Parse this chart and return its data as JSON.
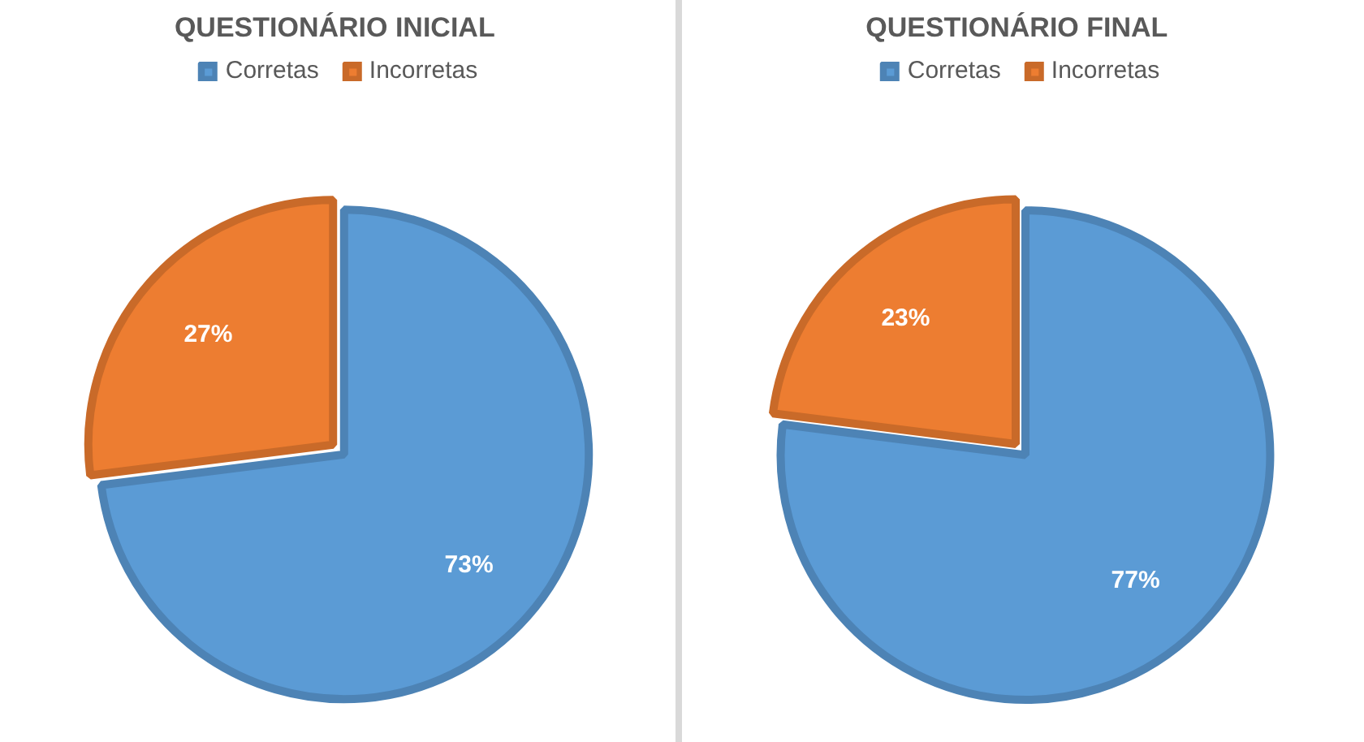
{
  "chart_data": [
    {
      "type": "pie",
      "title": "QUESTIONÁRIO  INICIAL",
      "categories": [
        "Corretas",
        "Incorretas"
      ],
      "values": [
        73,
        27
      ],
      "colors": [
        "#5b9bd5",
        "#ed7d31"
      ],
      "value_labels": [
        "73%",
        "27%"
      ],
      "legend": "top"
    },
    {
      "type": "pie",
      "title": "QUESTIONÁRIO  FINAL",
      "categories": [
        "Corretas",
        "Incorretas"
      ],
      "values": [
        77,
        23
      ],
      "colors": [
        "#5b9bd5",
        "#ed7d31"
      ],
      "value_labels": [
        "77%",
        "23%"
      ],
      "legend": "top"
    }
  ]
}
